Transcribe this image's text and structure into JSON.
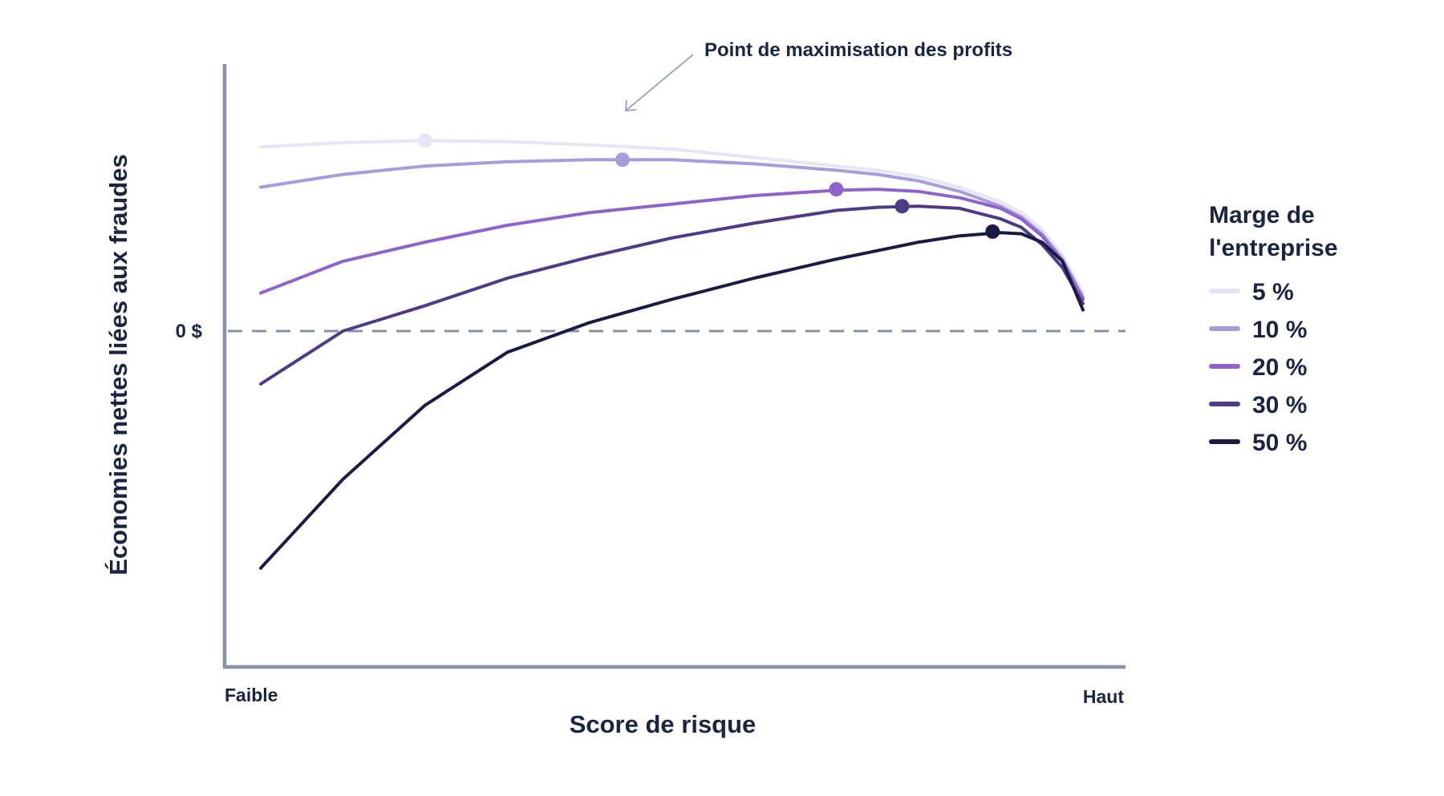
{
  "chart_data": {
    "type": "line",
    "title": "",
    "xlabel": "Score de risque",
    "ylabel": "Économies nettes liées aux fraudes",
    "x_tick_labels": [
      "Faible",
      "Haut"
    ],
    "xlim": [
      0,
      100
    ],
    "ylim": [
      -100,
      100
    ],
    "y_reference": {
      "value": 0,
      "label": "0 $",
      "style": "dashed"
    },
    "grid": false,
    "legend": {
      "title": "Marge de l'entreprise",
      "placement": "right"
    },
    "annotation": {
      "text": "Point de maximisation des profits",
      "points_to_series": "10 %"
    },
    "x": [
      0,
      10,
      20,
      30,
      40,
      50,
      60,
      70,
      75,
      80,
      85,
      90,
      92.5,
      95,
      97.5,
      100
    ],
    "series": [
      {
        "name": "5 %",
        "color": "#e6e5f6",
        "values": [
          87,
          89,
          90,
          89.5,
          88,
          86,
          82,
          78,
          76,
          73,
          68,
          61,
          56,
          48,
          36,
          18
        ],
        "max_point": {
          "x": 20,
          "y": 90
        }
      },
      {
        "name": "10 %",
        "color": "#a99cdd",
        "values": [
          68,
          74,
          78,
          80,
          81,
          81,
          79,
          76,
          74,
          71,
          66,
          59,
          54,
          46,
          34,
          16
        ],
        "max_point": {
          "x": 44,
          "y": 81
        }
      },
      {
        "name": "20 %",
        "color": "#8d64cb",
        "values": [
          18,
          33,
          42,
          50,
          56,
          60,
          64,
          66.5,
          67,
          66,
          63,
          58,
          53,
          45,
          33,
          15
        ],
        "max_point": {
          "x": 70,
          "y": 67
        }
      },
      {
        "name": "30 %",
        "color": "#4e3b85",
        "values": [
          -25,
          0,
          12,
          25,
          35,
          44,
          51,
          57,
          58.5,
          59,
          58,
          53,
          49,
          41,
          30,
          13
        ],
        "max_point": {
          "x": 78,
          "y": 59
        }
      },
      {
        "name": "50 %",
        "color": "#1c1a43",
        "values": [
          -112,
          -70,
          -35,
          -10,
          4,
          15,
          25,
          34,
          38,
          42,
          45,
          46.5,
          46,
          42,
          33,
          10
        ],
        "max_point": {
          "x": 89,
          "y": 47
        }
      }
    ]
  }
}
